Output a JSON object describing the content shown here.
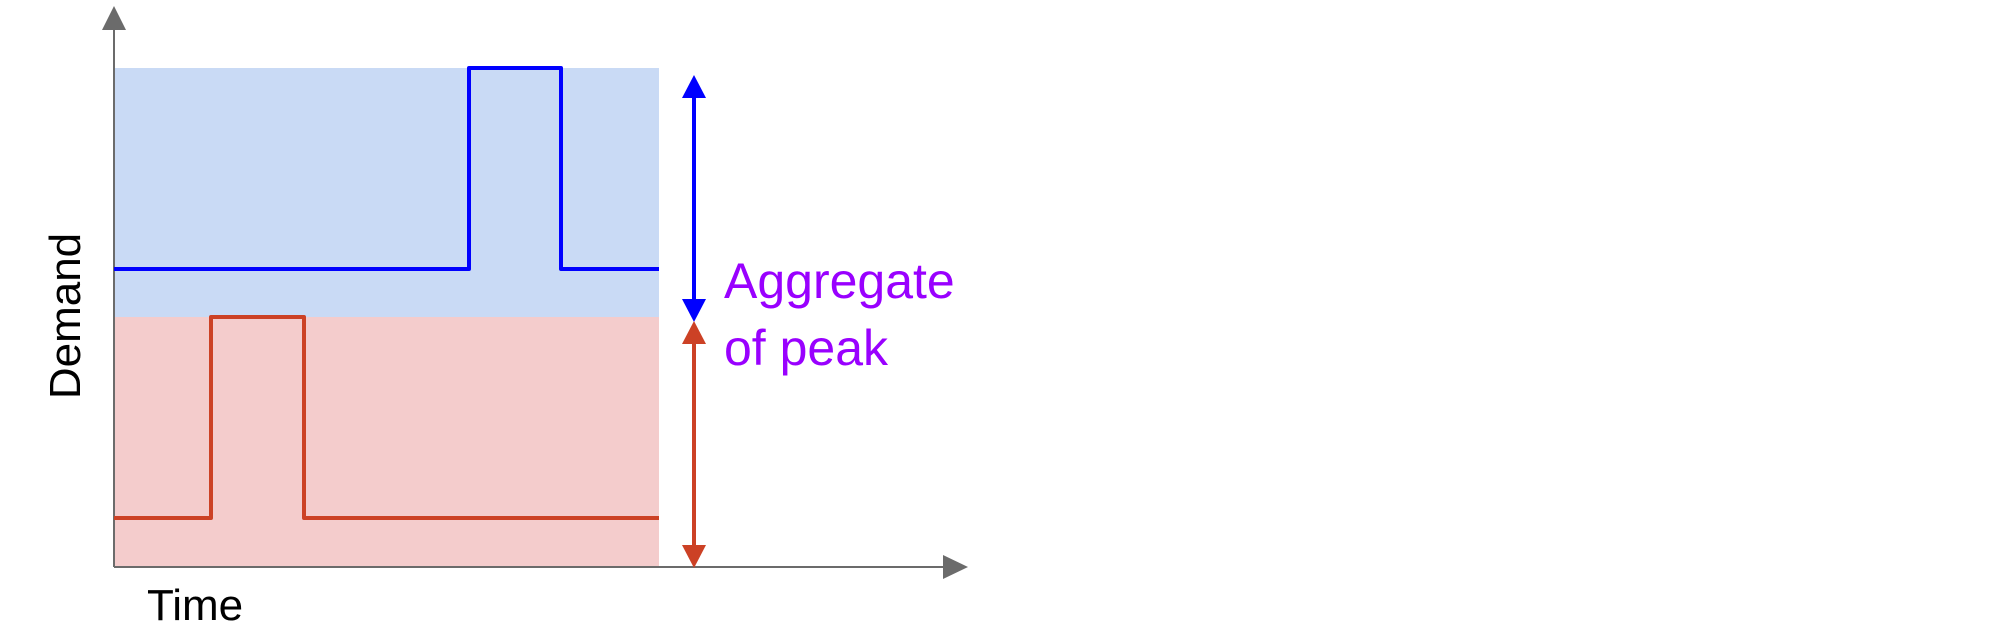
{
  "axes": {
    "x_label": "Time",
    "y_label": "Demand",
    "axis_color": "#6b6b6b"
  },
  "bands": {
    "upper_fill": "#c9daf5",
    "lower_fill": "#f4cccc"
  },
  "series": [
    {
      "id": "upper",
      "color": "#0000ff",
      "baseline": "low",
      "spike": "high"
    },
    {
      "id": "lower",
      "color": "#cc4125",
      "baseline": "low",
      "spike": "high"
    }
  ],
  "annotation": {
    "line1": "Aggregate",
    "line2": "of peak",
    "color": "#9900ff",
    "upper_arrow_color": "#0000ff",
    "lower_arrow_color": "#cc4125"
  }
}
